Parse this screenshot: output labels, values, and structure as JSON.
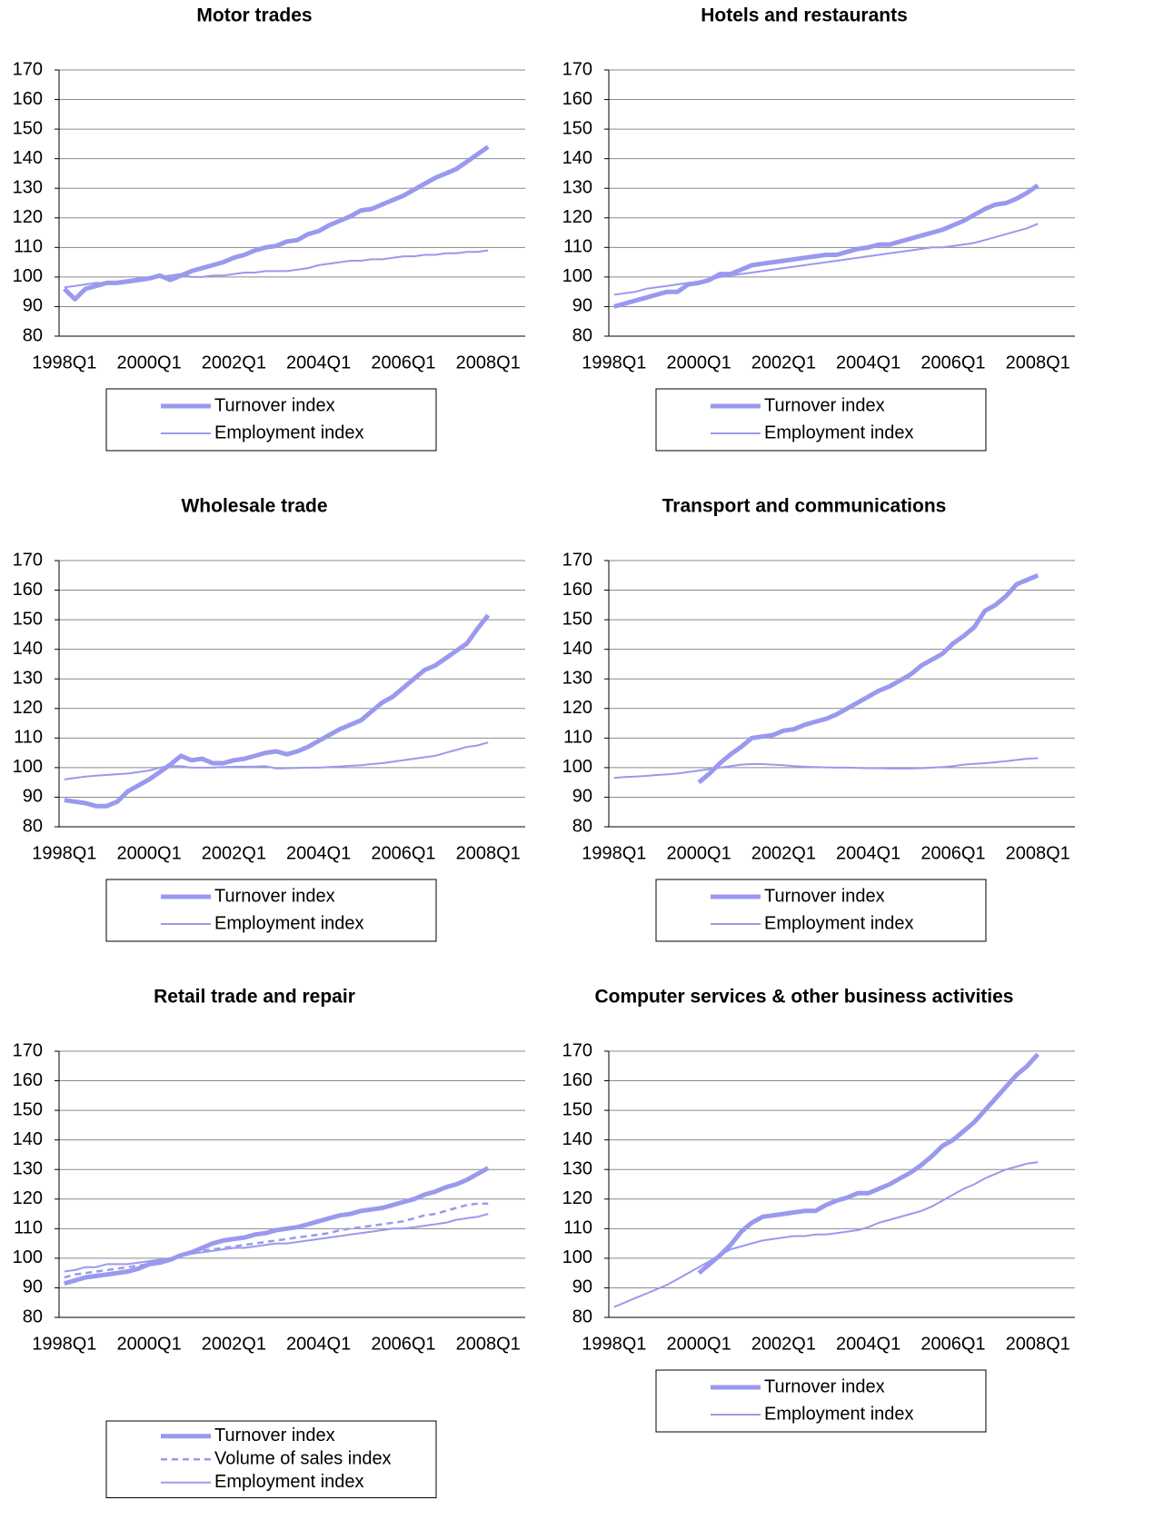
{
  "chart_data": [
    {
      "type": "line",
      "title": "Motor trades",
      "categories": [
        "1998Q1",
        null,
        null,
        null,
        null,
        null,
        null,
        null,
        "2000Q1",
        null,
        null,
        null,
        null,
        null,
        null,
        null,
        "2002Q1",
        null,
        null,
        null,
        null,
        null,
        null,
        null,
        "2004Q1",
        null,
        null,
        null,
        null,
        null,
        null,
        null,
        "2006Q1",
        null,
        null,
        null,
        null,
        null,
        null,
        null,
        "2008Q1"
      ],
      "ylim": [
        80,
        170
      ],
      "yticks": [
        80,
        90,
        100,
        110,
        120,
        130,
        140,
        150,
        160,
        170
      ],
      "grid": true,
      "series": [
        {
          "name": "Turnover index",
          "color": "#9999ee",
          "style": "thick",
          "values": [
            96,
            92.5,
            96,
            97,
            98,
            98,
            98.5,
            99,
            99.5,
            100.5,
            99,
            100.5,
            102,
            103,
            104,
            105,
            106.5,
            107.5,
            109,
            110,
            110.5,
            112,
            112.5,
            114.5,
            115.5,
            117.5,
            119,
            120.5,
            122.5,
            123,
            124.5,
            126,
            127.5,
            129.5,
            131.5,
            133.5,
            135,
            136.5,
            139,
            141.5,
            144
          ]
        },
        {
          "name": "Employment index",
          "color": "#9999ee",
          "style": "thin",
          "values": [
            96.5,
            97,
            97.5,
            98,
            98,
            98.5,
            99,
            99.5,
            99.5,
            100,
            100.5,
            101,
            100,
            100,
            100.5,
            100.5,
            101,
            101.5,
            101.5,
            102,
            102,
            102,
            102.5,
            103,
            104,
            104.5,
            105,
            105.5,
            105.5,
            106,
            106,
            106.5,
            107,
            107,
            107.5,
            107.5,
            108,
            108,
            108.5,
            108.5,
            109
          ]
        }
      ]
    },
    {
      "type": "line",
      "title": "Hotels and restaurants",
      "categories": [
        "1998Q1",
        null,
        null,
        null,
        null,
        null,
        null,
        null,
        "2000Q1",
        null,
        null,
        null,
        null,
        null,
        null,
        null,
        "2002Q1",
        null,
        null,
        null,
        null,
        null,
        null,
        null,
        "2004Q1",
        null,
        null,
        null,
        null,
        null,
        null,
        null,
        "2006Q1",
        null,
        null,
        null,
        null,
        null,
        null,
        null,
        "2008Q1"
      ],
      "ylim": [
        80,
        170
      ],
      "yticks": [
        80,
        90,
        100,
        110,
        120,
        130,
        140,
        150,
        160,
        170
      ],
      "grid": true,
      "series": [
        {
          "name": "Turnover index",
          "color": "#9999ee",
          "style": "thick",
          "values": [
            90,
            91,
            92,
            93,
            94,
            95,
            95,
            97.5,
            98,
            99,
            101,
            101,
            102.5,
            104,
            104.5,
            105,
            105.5,
            106,
            106.5,
            107,
            107.5,
            107.5,
            108.5,
            109.5,
            110,
            111,
            111,
            112,
            113,
            114,
            115,
            116,
            117.5,
            119,
            121,
            123,
            124.5,
            125,
            126.5,
            128.5,
            131
          ]
        },
        {
          "name": "Employment index",
          "color": "#9999ee",
          "style": "thin",
          "values": [
            94,
            94.5,
            95,
            96,
            96.5,
            97,
            97.5,
            98,
            98.5,
            99,
            100,
            100.5,
            101,
            101.5,
            102,
            102.5,
            103,
            103.5,
            104,
            104.5,
            105,
            105.5,
            106,
            106.5,
            107,
            107.5,
            108,
            108.5,
            109,
            109.5,
            110,
            110,
            110.5,
            111,
            111.5,
            112.5,
            113.5,
            114.5,
            115.5,
            116.5,
            118
          ]
        }
      ]
    },
    {
      "type": "line",
      "title": "Wholesale trade",
      "categories": [
        "1998Q1",
        null,
        null,
        null,
        null,
        null,
        null,
        null,
        "2000Q1",
        null,
        null,
        null,
        null,
        null,
        null,
        null,
        "2002Q1",
        null,
        null,
        null,
        null,
        null,
        null,
        null,
        "2004Q1",
        null,
        null,
        null,
        null,
        null,
        null,
        null,
        "2006Q1",
        null,
        null,
        null,
        null,
        null,
        null,
        null,
        "2008Q1"
      ],
      "ylim": [
        80,
        170
      ],
      "yticks": [
        80,
        90,
        100,
        110,
        120,
        130,
        140,
        150,
        160,
        170
      ],
      "grid": true,
      "series": [
        {
          "name": "Turnover index",
          "color": "#9999ee",
          "style": "thick",
          "values": [
            89,
            88.5,
            88,
            87,
            87,
            88.5,
            92,
            94,
            96,
            98.5,
            101,
            104,
            102.5,
            103,
            101.5,
            101.5,
            102.5,
            103,
            104,
            105,
            105.5,
            104.5,
            105.5,
            107,
            109,
            111,
            113,
            114.5,
            116,
            119,
            122,
            124,
            127,
            130,
            133,
            134.5,
            137,
            139.5,
            142,
            147,
            151.5
          ]
        },
        {
          "name": "Employment index",
          "color": "#9999ee",
          "style": "thin",
          "values": [
            96,
            96.5,
            97,
            97.3,
            97.5,
            97.8,
            98,
            98.5,
            99,
            100,
            100.5,
            100.5,
            100,
            100,
            100,
            100.2,
            100.3,
            100.3,
            100.3,
            100.5,
            99.7,
            99.8,
            99.9,
            100,
            100,
            100.2,
            100.4,
            100.6,
            100.8,
            101.2,
            101.5,
            102,
            102.5,
            103,
            103.5,
            104,
            105,
            106,
            107,
            107.5,
            108.5
          ]
        }
      ]
    },
    {
      "type": "line",
      "title": "Transport and communications",
      "categories": [
        "1998Q1",
        null,
        null,
        null,
        null,
        null,
        null,
        null,
        "2000Q1",
        null,
        null,
        null,
        null,
        null,
        null,
        null,
        "2002Q1",
        null,
        null,
        null,
        null,
        null,
        null,
        null,
        "2004Q1",
        null,
        null,
        null,
        null,
        null,
        null,
        null,
        "2006Q1",
        null,
        null,
        null,
        null,
        null,
        null,
        null,
        "2008Q1"
      ],
      "ylim": [
        80,
        170
      ],
      "yticks": [
        80,
        90,
        100,
        110,
        120,
        130,
        140,
        150,
        160,
        170
      ],
      "grid": true,
      "series": [
        {
          "name": "Turnover index",
          "color": "#9999ee",
          "style": "thick",
          "values": [
            null,
            null,
            null,
            null,
            null,
            null,
            null,
            null,
            95,
            98,
            101.5,
            104.5,
            107,
            110,
            110.5,
            111,
            112.5,
            113,
            114.5,
            115.5,
            116.5,
            118,
            120,
            122,
            124,
            126,
            127.5,
            129.5,
            131.5,
            134.5,
            136.5,
            138.5,
            142,
            144.5,
            147.5,
            153,
            155,
            158,
            162,
            163.5,
            165
          ]
        },
        {
          "name": "Employment index",
          "color": "#9999ee",
          "style": "thin",
          "values": [
            96.5,
            96.8,
            97,
            97.2,
            97.5,
            97.7,
            98,
            98.5,
            99,
            99.5,
            100,
            100.5,
            101,
            101.2,
            101.2,
            101,
            100.8,
            100.5,
            100.3,
            100.2,
            100.1,
            100,
            100,
            99.9,
            99.8,
            99.8,
            99.7,
            99.7,
            99.7,
            99.8,
            100,
            100.2,
            100.5,
            101,
            101.3,
            101.5,
            101.8,
            102.2,
            102.6,
            103,
            103.2
          ]
        }
      ]
    },
    {
      "type": "line",
      "title": "Retail trade and repair",
      "categories": [
        "1998Q1",
        null,
        null,
        null,
        null,
        null,
        null,
        null,
        "2000Q1",
        null,
        null,
        null,
        null,
        null,
        null,
        null,
        "2002Q1",
        null,
        null,
        null,
        null,
        null,
        null,
        null,
        "2004Q1",
        null,
        null,
        null,
        null,
        null,
        null,
        null,
        "2006Q1",
        null,
        null,
        null,
        null,
        null,
        null,
        null,
        "2008Q1"
      ],
      "ylim": [
        80,
        170
      ],
      "yticks": [
        80,
        90,
        100,
        110,
        120,
        130,
        140,
        150,
        160,
        170
      ],
      "grid": true,
      "series": [
        {
          "name": "Turnover index",
          "color": "#9999ee",
          "style": "thick",
          "values": [
            91.5,
            92.5,
            93.5,
            94,
            94.5,
            95,
            95.5,
            96.5,
            98,
            98.5,
            99.5,
            101,
            102,
            103.5,
            105,
            106,
            106.5,
            107,
            108,
            108.5,
            109.5,
            110,
            110.5,
            111.5,
            112.5,
            113.5,
            114.5,
            115,
            116,
            116.5,
            117,
            118,
            119,
            120,
            121.5,
            122.5,
            124,
            125,
            126.5,
            128.5,
            130.5
          ]
        },
        {
          "name": "Volume of sales index",
          "color": "#9999ee",
          "style": "dashed",
          "values": [
            93.5,
            94.5,
            95,
            95.5,
            96,
            96.5,
            97,
            97.5,
            98,
            99,
            100,
            101,
            101.5,
            102.5,
            103,
            103.5,
            104,
            104.5,
            105,
            105.5,
            106,
            106.5,
            107,
            107.5,
            108,
            108.5,
            109.5,
            110,
            110.5,
            111,
            111.5,
            112,
            112.5,
            113.5,
            114.5,
            115,
            116,
            117,
            118,
            118.5,
            118.5
          ]
        },
        {
          "name": "Employment index",
          "color": "#9999ee",
          "style": "thin",
          "values": [
            95.5,
            96,
            97,
            97,
            98,
            98,
            98,
            98.5,
            99,
            99.5,
            100,
            101,
            101.5,
            102,
            102.5,
            103,
            103.5,
            103.5,
            104,
            104.5,
            105,
            105,
            105.5,
            106,
            106.5,
            107,
            107.5,
            108,
            108.5,
            109,
            109.5,
            110,
            110,
            110.5,
            111,
            111.5,
            112,
            113,
            113.5,
            114,
            115
          ]
        }
      ]
    },
    {
      "type": "line",
      "title": "Computer services & other business activities",
      "categories": [
        "1998Q1",
        null,
        null,
        null,
        null,
        null,
        null,
        null,
        "2000Q1",
        null,
        null,
        null,
        null,
        null,
        null,
        null,
        "2002Q1",
        null,
        null,
        null,
        null,
        null,
        null,
        null,
        "2004Q1",
        null,
        null,
        null,
        null,
        null,
        null,
        null,
        "2006Q1",
        null,
        null,
        null,
        null,
        null,
        null,
        null,
        "2008Q1"
      ],
      "ylim": [
        80,
        170
      ],
      "yticks": [
        80,
        90,
        100,
        110,
        120,
        130,
        140,
        150,
        160,
        170
      ],
      "grid": true,
      "series": [
        {
          "name": "Turnover index",
          "color": "#9999ee",
          "style": "thick",
          "values": [
            null,
            null,
            null,
            null,
            null,
            null,
            null,
            null,
            95,
            98,
            101,
            104.5,
            109,
            112,
            114,
            114.5,
            115,
            115.5,
            116,
            116,
            118,
            119.5,
            120.5,
            122,
            122,
            123.5,
            125,
            127,
            129,
            131.5,
            134.5,
            138,
            140,
            143,
            146,
            150,
            154,
            158,
            162,
            165,
            169
          ]
        },
        {
          "name": "Employment index",
          "color": "#9999ee",
          "style": "thin",
          "values": [
            83.5,
            85,
            86.5,
            88,
            89.5,
            91,
            93,
            95,
            97,
            99,
            101,
            103,
            104,
            105,
            106,
            106.5,
            107,
            107.5,
            107.5,
            108,
            108,
            108.5,
            109,
            109.5,
            110.5,
            112,
            113,
            114,
            115,
            116,
            117.5,
            119.5,
            121.5,
            123.5,
            125,
            127,
            128.5,
            130,
            131,
            132,
            132.5
          ]
        }
      ]
    }
  ]
}
